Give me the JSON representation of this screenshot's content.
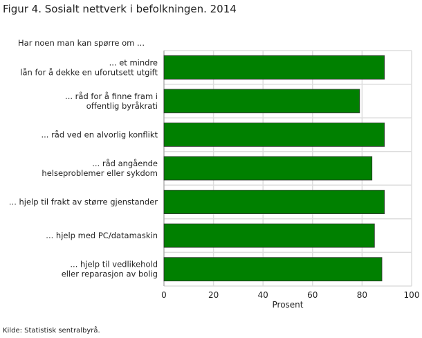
{
  "title": "Figur 4. Sosialt nettverk i befolkningen. 2014",
  "source": "Kilde: Statistisk sentralbyrå.",
  "chart_data": {
    "type": "bar",
    "orientation": "horizontal",
    "subtitle": "Har noen man kan spørre om ...",
    "categories": [
      [
        "... et mindre",
        "lån for å dekke en uforutsett utgift"
      ],
      [
        "... råd for å finne fram i",
        "offentlig byråkrati"
      ],
      [
        "... råd ved en alvorlig konflikt"
      ],
      [
        "... råd angående",
        "helseproblemer eller sykdom"
      ],
      [
        "... hjelp til frakt av større gjenstander"
      ],
      [
        "... hjelp med PC/datamaskin"
      ],
      [
        "... hjelp til vedlikehold",
        "eller reparasjon av bolig"
      ]
    ],
    "values": [
      89,
      79,
      89,
      84,
      89,
      85,
      88
    ],
    "xlabel": "Prosent",
    "xlim": [
      0,
      100
    ],
    "xticks": [
      0,
      20,
      40,
      60,
      80,
      100
    ],
    "grid": true,
    "bar_color": "#008000"
  }
}
